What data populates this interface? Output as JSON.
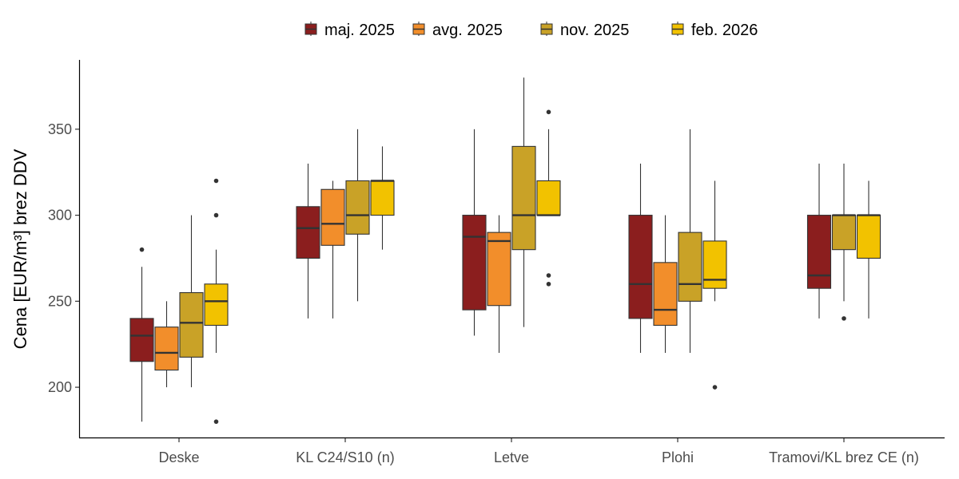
{
  "chart_data": {
    "type": "boxplot",
    "title": "",
    "xlabel": "",
    "ylabel": "Cena [EUR/m³] brez DDV",
    "ylim": [
      170.8,
      390.3
    ],
    "yticks": [
      200,
      250,
      300,
      350
    ],
    "grid": false,
    "legend_position": "top",
    "categories": [
      "Deske",
      "KL C24/S10 (n)",
      "Letve",
      "Plohi",
      "Tramovi/KL brez CE (n)"
    ],
    "series": [
      {
        "name": "maj. 2025",
        "color": "#8B1E1E",
        "boxes": [
          {
            "category": "Deske",
            "min": 180,
            "q1": 215,
            "median": 230,
            "q3": 240,
            "max": 270,
            "outliers": [
              280
            ]
          },
          {
            "category": "KL C24/S10 (n)",
            "min": 240,
            "q1": 275,
            "median": 292.5,
            "q3": 305,
            "max": 330,
            "outliers": []
          },
          {
            "category": "Letve",
            "min": 230,
            "q1": 245,
            "median": 287.5,
            "q3": 300,
            "max": 350,
            "outliers": []
          },
          {
            "category": "Plohi",
            "min": 220,
            "q1": 240,
            "median": 260,
            "q3": 300,
            "max": 330,
            "outliers": []
          },
          {
            "category": "Tramovi/KL brez CE (n)",
            "min": 240,
            "q1": 257.5,
            "median": 265,
            "q3": 300,
            "max": 330,
            "outliers": []
          }
        ]
      },
      {
        "name": "avg. 2025",
        "color": "#F28E2B",
        "boxes": [
          {
            "category": "Deske",
            "min": 200,
            "q1": 210,
            "median": 220,
            "q3": 235,
            "max": 250,
            "outliers": []
          },
          {
            "category": "KL C24/S10 (n)",
            "min": 240,
            "q1": 282.5,
            "median": 295,
            "q3": 315,
            "max": 320,
            "outliers": []
          },
          {
            "category": "Letve",
            "min": 220,
            "q1": 247.5,
            "median": 285,
            "q3": 290,
            "max": 300,
            "outliers": []
          },
          {
            "category": "Plohi",
            "min": 220,
            "q1": 236,
            "median": 245,
            "q3": 272.5,
            "max": 300,
            "outliers": []
          }
        ]
      },
      {
        "name": "nov. 2025",
        "color": "#C9A227",
        "boxes": [
          {
            "category": "Deske",
            "min": 200,
            "q1": 217.5,
            "median": 237.5,
            "q3": 255,
            "max": 300,
            "outliers": []
          },
          {
            "category": "KL C24/S10 (n)",
            "min": 250,
            "q1": 289,
            "median": 300,
            "q3": 320,
            "max": 350,
            "outliers": []
          },
          {
            "category": "Letve",
            "min": 235,
            "q1": 280,
            "median": 300,
            "q3": 340,
            "max": 380,
            "outliers": []
          },
          {
            "category": "Plohi",
            "min": 220,
            "q1": 250,
            "median": 260,
            "q3": 290,
            "max": 350,
            "outliers": []
          },
          {
            "category": "Tramovi/KL brez CE (n)",
            "min": 250,
            "q1": 280,
            "median": 300,
            "q3": 300,
            "max": 330,
            "outliers": [
              240
            ]
          }
        ]
      },
      {
        "name": "feb. 2026",
        "color": "#F2C200",
        "boxes": [
          {
            "category": "Deske",
            "min": 220,
            "q1": 236,
            "median": 250,
            "q3": 260,
            "max": 280,
            "outliers": [
              300,
              320,
              180
            ]
          },
          {
            "category": "KL C24/S10 (n)",
            "min": 280,
            "q1": 300,
            "median": 320,
            "q3": 320,
            "max": 340,
            "outliers": []
          },
          {
            "category": "Letve",
            "min": 300,
            "q1": 300,
            "median": 300,
            "q3": 320,
            "max": 350,
            "outliers": [
              360,
              265,
              260
            ]
          },
          {
            "category": "Plohi",
            "min": 250,
            "q1": 257.5,
            "median": 262.5,
            "q3": 285,
            "max": 320,
            "outliers": [
              200
            ]
          },
          {
            "category": "Tramovi/KL brez CE (n)",
            "min": 240,
            "q1": 275,
            "median": 300,
            "q3": 300,
            "max": 320,
            "outliers": []
          }
        ]
      }
    ]
  }
}
